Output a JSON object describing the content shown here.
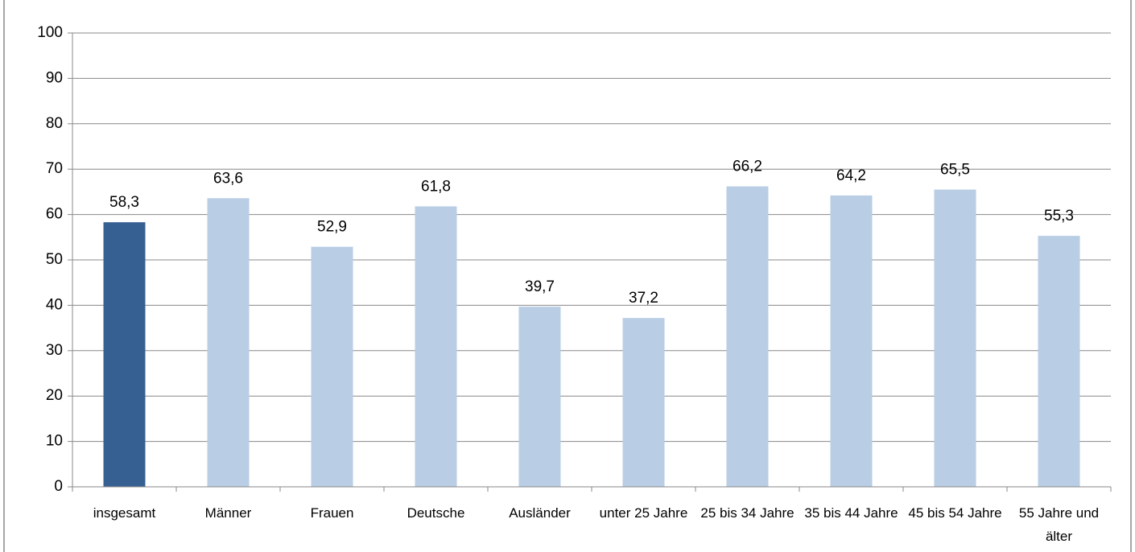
{
  "chart_data": {
    "type": "bar",
    "categories": [
      "insgesamt",
      "Männer",
      "Frauen",
      "Deutsche",
      "Ausländer",
      "unter 25 Jahre",
      "25 bis 34 Jahre",
      "35 bis 44 Jahre",
      "45 bis 54 Jahre",
      "55 Jahre und älter"
    ],
    "values": [
      58.3,
      63.6,
      52.9,
      61.8,
      39.7,
      37.2,
      66.2,
      64.2,
      65.5,
      55.3
    ],
    "value_labels": [
      "58,3",
      "63,6",
      "52,9",
      "61,8",
      "39,7",
      "37,2",
      "66,2",
      "64,2",
      "65,5",
      "55,3"
    ],
    "colors": [
      "#376092",
      "#b9cde5",
      "#b9cde5",
      "#b9cde5",
      "#b9cde5",
      "#b9cde5",
      "#b9cde5",
      "#b9cde5",
      "#b9cde5",
      "#b9cde5"
    ],
    "ylim": [
      0,
      100
    ],
    "yticks": [
      0,
      10,
      20,
      30,
      40,
      50,
      60,
      70,
      80,
      90,
      100
    ],
    "grid": true
  }
}
